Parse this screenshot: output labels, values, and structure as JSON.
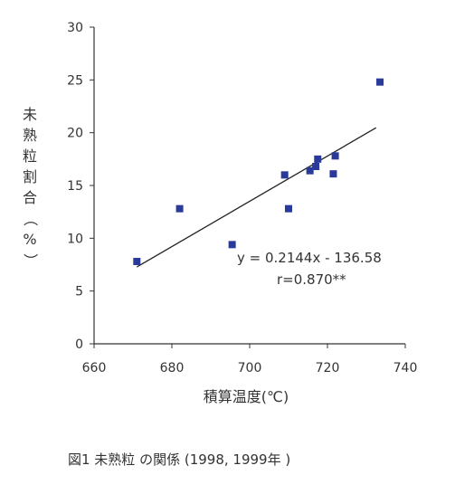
{
  "chart_data": {
    "type": "scatter",
    "title": "",
    "xlabel": "積算温度(℃)",
    "ylabel": "未熟粒割合（%）",
    "xlim": [
      660,
      740
    ],
    "ylim": [
      0,
      30
    ],
    "x_ticks": [
      660,
      680,
      700,
      720,
      740
    ],
    "y_ticks": [
      0,
      5,
      10,
      15,
      20,
      25,
      30
    ],
    "grid": false,
    "series": [
      {
        "color": "#2a3a9a",
        "marker": "square",
        "points": [
          {
            "x": 671,
            "y": 7.8
          },
          {
            "x": 682,
            "y": 12.8
          },
          {
            "x": 695.5,
            "y": 9.4
          },
          {
            "x": 709,
            "y": 16.0
          },
          {
            "x": 710,
            "y": 12.8
          },
          {
            "x": 715.5,
            "y": 16.4
          },
          {
            "x": 717,
            "y": 16.8
          },
          {
            "x": 717.5,
            "y": 17.5
          },
          {
            "x": 721.5,
            "y": 16.1
          },
          {
            "x": 722,
            "y": 17.8
          },
          {
            "x": 733.5,
            "y": 24.8
          }
        ]
      }
    ],
    "regression": {
      "slope": 0.2144,
      "intercept": -136.58,
      "x_range": [
        671,
        732.5
      ],
      "equation": "y = 0.2144x - 136.58",
      "r": "r=0.870**"
    },
    "caption": "図1 未熟粒 の関係 (1998, 1999年 )"
  }
}
